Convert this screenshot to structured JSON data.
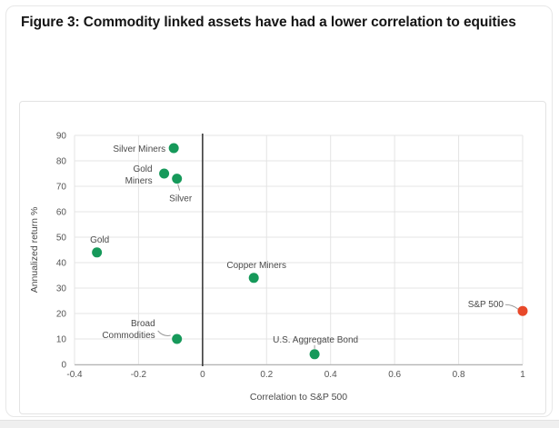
{
  "figure": {
    "title": "Figure 3: Commodity linked assets have had a lower correlation to equities"
  },
  "chart_data": {
    "type": "scatter",
    "title": "Figure 3: Commodity linked assets have had a lower correlation to equities",
    "xlabel": "Correlation to S&P 500",
    "ylabel": "Annualized return %",
    "xlim": [
      -0.4,
      1
    ],
    "ylim": [
      0,
      90
    ],
    "x_tick_values": [
      -0.4,
      -0.2,
      0,
      0.2,
      0.4,
      0.6,
      0.8,
      1
    ],
    "x_tick_labels": [
      "-0.4",
      "-0.2",
      "0",
      "0.2",
      "0.4",
      "0.6",
      "0.8",
      "1"
    ],
    "y_tick_values": [
      0,
      10,
      20,
      30,
      40,
      50,
      60,
      70,
      80,
      90
    ],
    "y_tick_labels": [
      "0",
      "10",
      "20",
      "30",
      "40",
      "50",
      "60",
      "70",
      "80",
      "90"
    ],
    "grid": true,
    "vertical_zero_line_at_x": 0,
    "legend": "none",
    "colors": {
      "commodity_green": "#16995a",
      "equity_orange": "#e8492a",
      "gridline": "#e4e4e4",
      "zero_line": "#3c3c3c",
      "axis_line": "#b5b5b5",
      "tick_text": "#555555",
      "label_text": "#4a4a4a",
      "leader_line": "#9a9a9a"
    },
    "points": [
      {
        "label": "Silver Miners",
        "x": -0.09,
        "y": 85,
        "color": "#16995a",
        "label_pos": "left"
      },
      {
        "label": "Gold Miners",
        "x": -0.12,
        "y": 75,
        "color": "#16995a",
        "label_pos": "left-2line"
      },
      {
        "label": "Silver",
        "x": -0.08,
        "y": 73,
        "color": "#16995a",
        "label_pos": "below-leader"
      },
      {
        "label": "Gold",
        "x": -0.33,
        "y": 44,
        "color": "#16995a",
        "label_pos": "above"
      },
      {
        "label": "Copper Miners",
        "x": 0.16,
        "y": 34,
        "color": "#16995a",
        "label_pos": "above"
      },
      {
        "label": "Broad Commodities",
        "x": -0.08,
        "y": 10,
        "color": "#16995a",
        "label_pos": "left-2line-leader"
      },
      {
        "label": "U.S. Aggregate Bond",
        "x": 0.35,
        "y": 4,
        "color": "#16995a",
        "label_pos": "above-leader"
      },
      {
        "label": "S&P 500",
        "x": 1.0,
        "y": 21,
        "color": "#e8492a",
        "label_pos": "left-leader"
      }
    ]
  }
}
